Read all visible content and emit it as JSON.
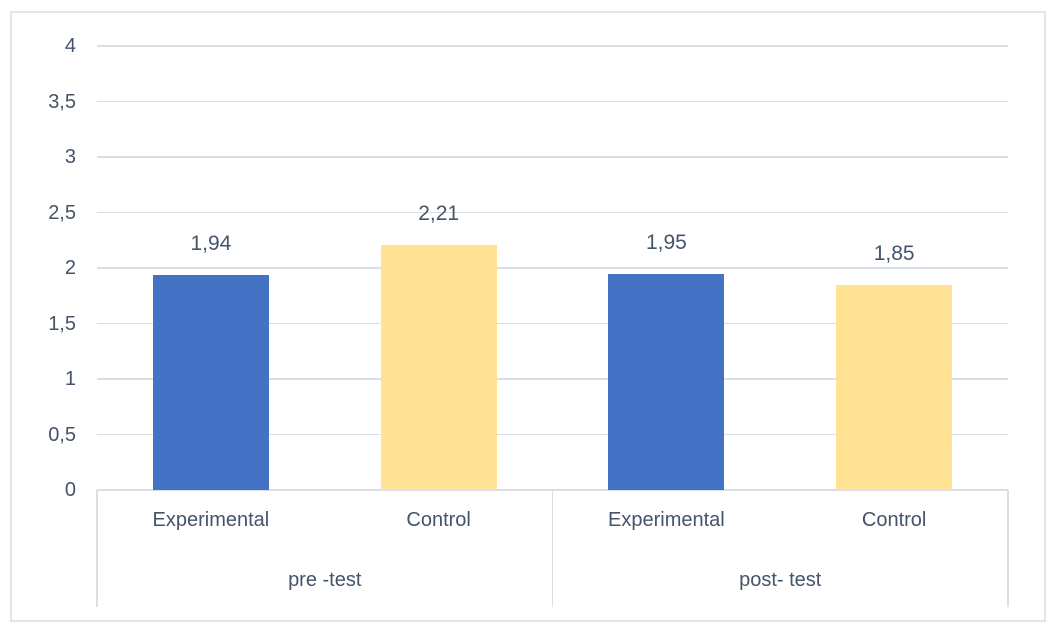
{
  "chart_data": {
    "type": "bar",
    "title": "",
    "legend": "none",
    "grid": true,
    "decimal_separator": ",",
    "y_axis": {
      "min": 0,
      "max": 4,
      "step": 0.5,
      "tick_labels": [
        "0",
        "0,5",
        "1",
        "1,5",
        "2",
        "2,5",
        "3",
        "3,5",
        "4"
      ]
    },
    "colors": {
      "experimental_bar": "#4472C4",
      "control_bar": "#FFE294",
      "text": "#44546A",
      "gridline": "#D9DEE8",
      "frame_border": "#E2E6EC"
    },
    "groups": [
      {
        "label": "pre -test",
        "bars": [
          {
            "series": "Experimental",
            "value": 1.94,
            "value_label": "1,94"
          },
          {
            "series": "Control",
            "value": 2.21,
            "value_label": "2,21"
          }
        ]
      },
      {
        "label": "post- test",
        "bars": [
          {
            "series": "Experimental",
            "value": 1.95,
            "value_label": "1,95"
          },
          {
            "series": "Control",
            "value": 1.85,
            "value_label": "1,85"
          }
        ]
      }
    ]
  }
}
